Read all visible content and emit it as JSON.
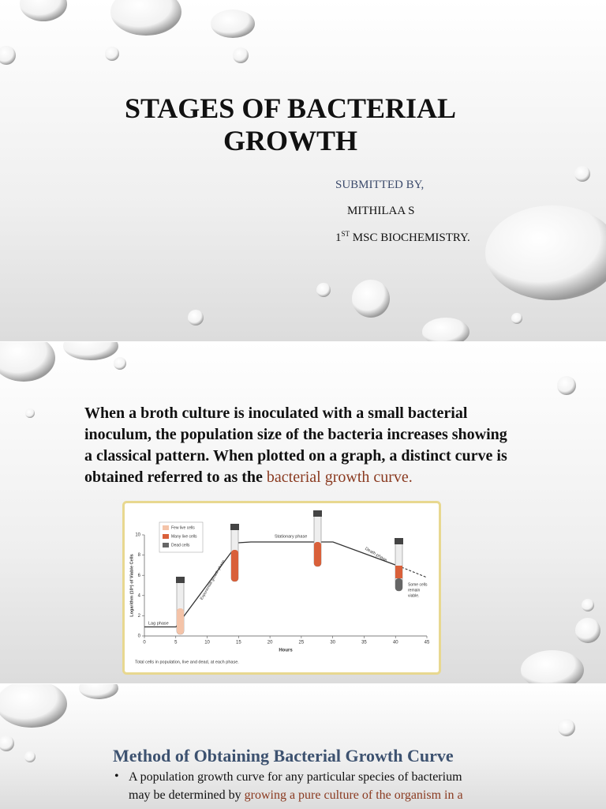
{
  "slide1": {
    "title_lines": [
      "STAGES OF BACTERIAL",
      "GROWTH"
    ],
    "submitted_by": "SUBMITTED BY,",
    "author": "MITHILAA S",
    "course_prefix": "1",
    "course_superscript": "ST",
    "course_text": " MSC BIOCHEMISTRY."
  },
  "slide2": {
    "lines": [
      "When a broth culture is inoculated with a small bacterial",
      "inoculum, the population size of the bacteria increases showing",
      "a classical pattern. When plotted on a graph, a distinct curve is"
    ],
    "last_line": "obtained referred to as the",
    "highlight": "bacterial growth curve.",
    "figure": {
      "legend": [
        "Few live cells",
        "Many live cells",
        "Dead cells"
      ],
      "phases": [
        "Lag phase",
        "Exponential growth phase",
        "Stationary phase",
        "Death phase"
      ],
      "note_lines": [
        "Some cells",
        "remain",
        "viable."
      ],
      "x_label": "Hours",
      "y_label": "Logarithm (10ⁿ) of Viable Cells",
      "caption": "Total cells in population, live and dead, at each phase.",
      "xlim": [
        0,
        45
      ],
      "xticks": [
        0,
        5,
        10,
        15,
        20,
        25,
        30,
        35,
        40,
        45
      ],
      "ylim": [
        0,
        10
      ],
      "yticks": [
        0,
        2,
        4,
        6,
        8,
        10
      ]
    }
  },
  "slide3": {
    "heading": "Method of Obtaining Bacterial Growth Curve",
    "bullet_lines": [
      "A population growth curve for any particular species of bacterium",
      "may be determined by"
    ],
    "bullet_highlight": "growing a pure culture of the organism in a"
  }
}
